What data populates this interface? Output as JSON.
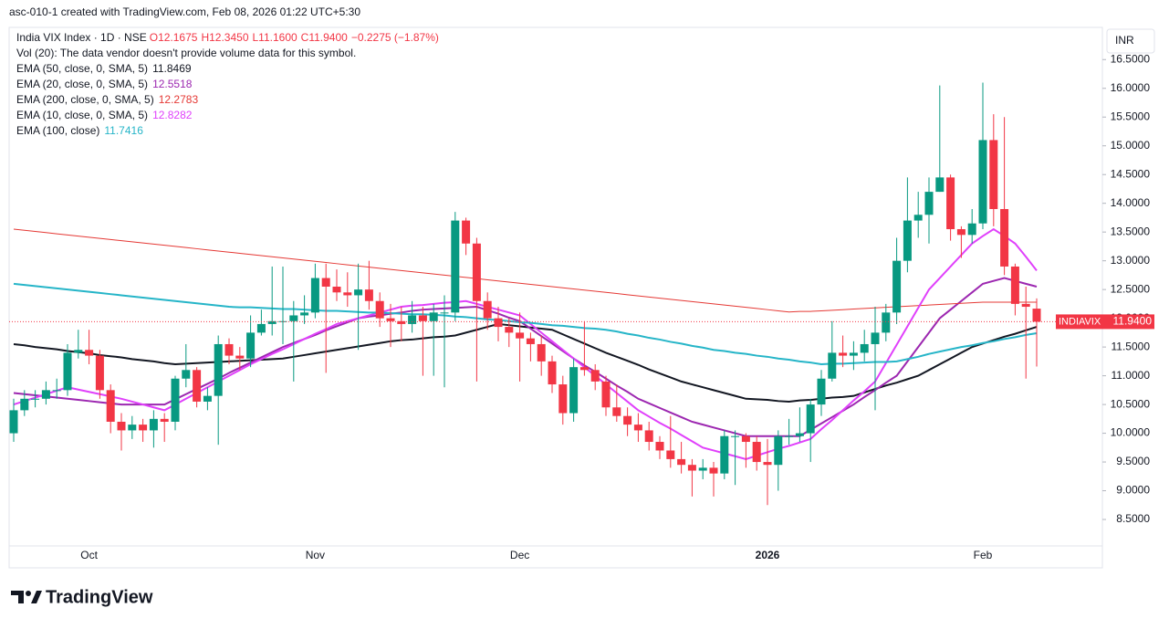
{
  "header": "asc-010-1 created with TradingView.com, Feb 08, 2026 01:22 UTC+5:30",
  "currency": "INR",
  "brand": "TradingView",
  "chart_data": {
    "type": "candlestick",
    "symbol": "India VIX Index · 1D · NSE",
    "ohlc_labels": [
      "O12.1675",
      "H12.3450",
      "L11.1600",
      "C11.9400"
    ],
    "change_label": "−0.2275 (−1.87%)",
    "volume_note": "Vol (20): The data vendor doesn't provide volume data for this symbol.",
    "price_tag": {
      "name": "INDIAVIX",
      "label": "11.9400"
    },
    "up_color": "#089981",
    "down_color": "#f23645",
    "categories": [
      null,
      null,
      null,
      null,
      null,
      null,
      null,
      "Oct",
      null,
      null,
      null,
      null,
      null,
      null,
      null,
      null,
      null,
      null,
      null,
      null,
      null,
      null,
      null,
      null,
      null,
      null,
      null,
      null,
      "Nov",
      null,
      null,
      null,
      null,
      null,
      null,
      null,
      null,
      null,
      null,
      null,
      null,
      null,
      null,
      null,
      null,
      null,
      null,
      "Dec",
      null,
      null,
      null,
      null,
      null,
      null,
      null,
      null,
      null,
      null,
      null,
      null,
      null,
      null,
      null,
      null,
      null,
      null,
      null,
      null,
      null,
      null,
      "2026",
      null,
      null,
      null,
      null,
      null,
      null,
      null,
      null,
      null,
      null,
      null,
      null,
      null,
      null,
      null,
      null,
      null,
      null,
      null,
      "Feb",
      null,
      null,
      null,
      null,
      null
    ],
    "open": [
      10.0,
      10.4,
      10.6,
      10.6,
      10.75,
      10.75,
      11.4,
      11.45,
      11.35,
      10.75,
      10.2,
      10.05,
      10.15,
      10.05,
      10.25,
      10.2,
      10.95,
      11.1,
      10.55,
      10.65,
      11.55,
      11.35,
      11.3,
      11.75,
      11.9,
      11.95,
      11.95,
      12.05,
      12.1,
      12.7,
      12.55,
      12.45,
      12.4,
      12.5,
      12.3,
      12.0,
      11.95,
      11.9,
      12.05,
      11.95,
      12.1,
      12.1,
      13.7,
      13.3,
      12.3,
      12.0,
      11.85,
      11.75,
      11.65,
      11.55,
      11.25,
      10.85,
      10.35,
      11.15,
      11.1,
      10.9,
      10.45,
      10.3,
      10.15,
      10.05,
      9.85,
      9.7,
      9.55,
      9.45,
      9.35,
      9.4,
      9.3,
      9.95,
      9.95,
      9.85,
      9.5,
      9.45,
      9.95,
      9.95,
      10.0,
      10.5,
      10.95,
      11.4,
      11.35,
      11.4,
      11.55,
      11.75,
      12.1,
      13.0,
      13.7,
      13.8,
      14.2,
      14.45,
      13.55,
      13.45,
      13.65,
      15.1,
      13.9,
      12.9,
      12.25,
      12.1675
    ],
    "high": [
      10.6,
      10.75,
      10.75,
      10.9,
      10.95,
      11.55,
      11.8,
      11.8,
      11.45,
      10.85,
      10.35,
      10.3,
      10.25,
      10.4,
      10.35,
      11.0,
      11.55,
      11.15,
      10.8,
      11.7,
      11.65,
      11.5,
      12.05,
      12.15,
      12.9,
      12.9,
      12.3,
      12.4,
      12.95,
      12.95,
      12.85,
      12.8,
      12.95,
      13.0,
      12.45,
      12.25,
      12.2,
      12.3,
      12.2,
      12.25,
      12.4,
      13.85,
      13.75,
      13.4,
      12.45,
      12.2,
      12.0,
      12.1,
      11.75,
      11.7,
      11.35,
      11.0,
      11.3,
      11.95,
      11.2,
      11.0,
      10.85,
      10.45,
      10.35,
      10.2,
      9.95,
      10.3,
      9.85,
      9.55,
      9.55,
      9.5,
      10.05,
      10.05,
      10.0,
      9.95,
      9.9,
      10.05,
      10.25,
      10.45,
      10.6,
      11.1,
      11.95,
      11.7,
      11.6,
      11.8,
      12.2,
      12.25,
      13.4,
      14.45,
      14.2,
      14.45,
      16.05,
      14.5,
      13.6,
      13.9,
      16.1,
      15.55,
      15.5,
      12.95,
      12.55,
      12.345
    ],
    "low": [
      9.85,
      10.3,
      10.45,
      10.5,
      10.6,
      10.65,
      11.3,
      11.2,
      10.6,
      10.0,
      9.7,
      9.9,
      9.85,
      9.75,
      9.85,
      10.05,
      10.8,
      10.45,
      10.4,
      9.8,
      11.2,
      11.1,
      11.15,
      11.7,
      11.7,
      11.55,
      10.9,
      11.9,
      12.0,
      11.05,
      12.3,
      12.2,
      11.45,
      12.15,
      11.85,
      11.5,
      11.6,
      11.75,
      11.0,
      11.0,
      10.8,
      11.95,
      13.1,
      10.9,
      11.8,
      11.6,
      11.5,
      10.9,
      11.25,
      11.0,
      10.7,
      10.15,
      10.2,
      11.0,
      10.75,
      10.3,
      10.2,
      9.95,
      9.85,
      9.7,
      9.55,
      9.4,
      9.3,
      8.9,
      9.2,
      8.9,
      9.2,
      9.1,
      9.4,
      9.35,
      8.75,
      9.0,
      9.8,
      9.85,
      9.5,
      10.3,
      10.9,
      11.15,
      11.1,
      11.25,
      10.4,
      11.6,
      11.9,
      12.8,
      13.4,
      13.3,
      14.2,
      13.35,
      13.05,
      13.3,
      13.55,
      13.6,
      12.75,
      12.05,
      10.95,
      11.16
    ],
    "close": [
      10.4,
      10.6,
      10.6,
      10.75,
      10.75,
      11.4,
      11.45,
      11.35,
      10.75,
      10.2,
      10.05,
      10.15,
      10.05,
      10.25,
      10.2,
      10.95,
      11.1,
      10.55,
      10.65,
      11.55,
      11.35,
      11.3,
      11.75,
      11.9,
      11.95,
      11.95,
      12.05,
      12.1,
      12.7,
      12.55,
      12.45,
      12.4,
      12.5,
      12.3,
      12.0,
      11.95,
      11.9,
      12.05,
      11.95,
      12.1,
      12.1,
      13.7,
      13.3,
      12.3,
      12.0,
      11.85,
      11.75,
      11.65,
      11.55,
      11.25,
      10.85,
      10.35,
      11.15,
      11.1,
      10.9,
      10.45,
      10.3,
      10.15,
      10.05,
      9.85,
      9.7,
      9.55,
      9.45,
      9.35,
      9.4,
      9.3,
      9.95,
      9.95,
      9.85,
      9.5,
      9.45,
      9.95,
      9.95,
      10.0,
      10.5,
      10.95,
      11.4,
      11.35,
      11.4,
      11.55,
      11.75,
      12.1,
      13.0,
      13.7,
      13.8,
      14.2,
      14.45,
      13.55,
      13.45,
      13.65,
      15.1,
      13.9,
      12.9,
      12.25,
      12.2,
      11.94
    ],
    "series": [
      {
        "name": "EMA (50, close, 0, SMA, 5)",
        "legend_value": "11.8469",
        "color": "#131722",
        "width": 2,
        "values": [
          11.55,
          11.53,
          11.5,
          11.48,
          11.46,
          11.43,
          11.41,
          11.39,
          11.36,
          11.34,
          11.32,
          11.29,
          11.27,
          11.25,
          11.22,
          11.2,
          11.21,
          11.22,
          11.23,
          11.24,
          11.25,
          11.26,
          11.27,
          11.28,
          11.29,
          11.3,
          11.33,
          11.36,
          11.39,
          11.42,
          11.45,
          11.48,
          11.51,
          11.54,
          11.57,
          11.6,
          11.62,
          11.63,
          11.65,
          11.67,
          11.68,
          11.7,
          11.75,
          11.8,
          11.85,
          11.9,
          11.88,
          11.86,
          11.84,
          11.82,
          11.8,
          11.72,
          11.64,
          11.56,
          11.48,
          11.4,
          11.33,
          11.26,
          11.19,
          11.11,
          11.04,
          10.97,
          10.9,
          10.85,
          10.8,
          10.75,
          10.7,
          10.65,
          10.6,
          10.59,
          10.58,
          10.56,
          10.55,
          10.57,
          10.58,
          10.6,
          10.62,
          10.63,
          10.65,
          10.71,
          10.77,
          10.83,
          10.88,
          10.94,
          11.0,
          11.1,
          11.2,
          11.3,
          11.4,
          11.5,
          11.56,
          11.62,
          11.68,
          11.73,
          11.79,
          11.85
        ]
      },
      {
        "name": "EMA (20, close, 0, SMA, 5)",
        "legend_value": "12.5518",
        "color": "#9c27b0",
        "width": 2,
        "values": [
          10.7,
          10.68,
          10.66,
          10.64,
          10.62,
          10.6,
          10.58,
          10.56,
          10.54,
          10.52,
          10.5,
          10.5,
          10.5,
          10.5,
          10.5,
          10.59,
          10.68,
          10.77,
          10.86,
          10.95,
          11.05,
          11.14,
          11.23,
          11.32,
          11.41,
          11.5,
          11.57,
          11.64,
          11.71,
          11.79,
          11.86,
          11.93,
          12.0,
          12.03,
          12.05,
          12.08,
          12.1,
          12.13,
          12.15,
          12.16,
          12.17,
          12.18,
          12.19,
          12.2,
          12.14,
          12.08,
          12.01,
          11.95,
          11.82,
          11.69,
          11.56,
          11.43,
          11.3,
          11.18,
          11.07,
          10.95,
          10.83,
          10.72,
          10.6,
          10.52,
          10.44,
          10.36,
          10.28,
          10.2,
          10.15,
          10.1,
          10.05,
          10.0,
          9.95,
          9.95,
          9.95,
          9.95,
          9.95,
          9.95,
          10.06,
          10.17,
          10.28,
          10.39,
          10.5,
          10.63,
          10.75,
          10.88,
          11.0,
          11.25,
          11.5,
          11.75,
          12.0,
          12.15,
          12.3,
          12.45,
          12.6,
          12.65,
          12.7,
          12.65,
          12.6,
          12.55
        ]
      },
      {
        "name": "EMA (200, close, 0, SMA, 5)",
        "legend_value": "12.2783",
        "color": "#e53935",
        "width": 1,
        "values": [
          13.55,
          13.53,
          13.51,
          13.49,
          13.47,
          13.45,
          13.43,
          13.41,
          13.39,
          13.37,
          13.35,
          13.33,
          13.31,
          13.29,
          13.27,
          13.25,
          13.23,
          13.21,
          13.19,
          13.17,
          13.15,
          13.13,
          13.11,
          13.09,
          13.07,
          13.05,
          13.03,
          13.01,
          12.99,
          12.97,
          12.95,
          12.93,
          12.91,
          12.89,
          12.87,
          12.85,
          12.83,
          12.81,
          12.79,
          12.77,
          12.75,
          12.73,
          12.71,
          12.69,
          12.67,
          12.65,
          12.63,
          12.61,
          12.59,
          12.57,
          12.55,
          12.53,
          12.51,
          12.49,
          12.47,
          12.45,
          12.43,
          12.41,
          12.39,
          12.37,
          12.35,
          12.33,
          12.31,
          12.29,
          12.27,
          12.25,
          12.23,
          12.21,
          12.19,
          12.17,
          12.15,
          12.13,
          12.11,
          12.12,
          12.12,
          12.13,
          12.14,
          12.15,
          12.16,
          12.17,
          12.18,
          12.19,
          12.2,
          12.21,
          12.22,
          12.23,
          12.24,
          12.25,
          12.26,
          12.27,
          12.28,
          12.28,
          12.28,
          12.28,
          12.28,
          12.28
        ]
      },
      {
        "name": "EMA (10, close, 0, SMA, 5)",
        "legend_value": "12.8282",
        "color": "#e040fb",
        "width": 2,
        "values": [
          10.5,
          10.56,
          10.62,
          10.68,
          10.74,
          10.8,
          10.76,
          10.72,
          10.68,
          10.64,
          10.6,
          10.55,
          10.5,
          10.45,
          10.4,
          10.5,
          10.6,
          10.7,
          10.8,
          10.9,
          11.0,
          11.1,
          11.2,
          11.29,
          11.38,
          11.46,
          11.55,
          11.64,
          11.73,
          11.81,
          11.9,
          11.95,
          12.0,
          12.05,
          12.1,
          12.15,
          12.2,
          12.22,
          12.23,
          12.25,
          12.27,
          12.28,
          12.3,
          12.25,
          12.2,
          12.15,
          12.1,
          12.05,
          11.9,
          11.75,
          11.6,
          11.45,
          11.3,
          11.15,
          11.0,
          10.85,
          10.7,
          10.55,
          10.4,
          10.29,
          10.18,
          10.08,
          9.97,
          9.86,
          9.75,
          9.7,
          9.65,
          9.6,
          9.55,
          9.61,
          9.67,
          9.73,
          9.78,
          9.84,
          9.9,
          10.07,
          10.23,
          10.4,
          10.57,
          10.73,
          10.9,
          11.22,
          11.54,
          11.86,
          12.18,
          12.5,
          12.7,
          12.9,
          13.1,
          13.3,
          13.43,
          13.55,
          13.43,
          13.3,
          13.07,
          12.83
        ]
      },
      {
        "name": "EMA (100, close)",
        "legend_value": "11.7416",
        "color": "#26b5c8",
        "width": 2,
        "values": [
          12.6,
          12.58,
          12.56,
          12.54,
          12.52,
          12.5,
          12.48,
          12.46,
          12.44,
          12.42,
          12.4,
          12.38,
          12.36,
          12.34,
          12.32,
          12.3,
          12.28,
          12.26,
          12.24,
          12.22,
          12.2,
          12.19,
          12.19,
          12.18,
          12.17,
          12.16,
          12.16,
          12.15,
          12.14,
          12.13,
          12.13,
          12.12,
          12.11,
          12.1,
          12.1,
          12.09,
          12.08,
          12.07,
          12.07,
          12.06,
          12.05,
          12.03,
          12.02,
          12.0,
          11.98,
          11.97,
          11.95,
          11.93,
          11.92,
          11.9,
          11.88,
          11.87,
          11.85,
          11.83,
          11.82,
          11.8,
          11.77,
          11.73,
          11.7,
          11.66,
          11.63,
          11.59,
          11.56,
          11.52,
          11.49,
          11.45,
          11.43,
          11.4,
          11.38,
          11.35,
          11.33,
          11.3,
          11.28,
          11.25,
          11.23,
          11.2,
          11.21,
          11.21,
          11.22,
          11.23,
          11.24,
          11.24,
          11.25,
          11.29,
          11.33,
          11.38,
          11.42,
          11.46,
          11.5,
          11.53,
          11.57,
          11.6,
          11.64,
          11.67,
          11.71,
          11.74
        ]
      }
    ],
    "ylim": [
      8.04,
      17.06
    ],
    "yticks": [
      {
        "value": 8.5,
        "label": "8.5000"
      },
      {
        "value": 9,
        "label": "9.0000"
      },
      {
        "value": 9.5,
        "label": "9.5000"
      },
      {
        "value": 10,
        "label": "10.0000"
      },
      {
        "value": 10.5,
        "label": "10.5000"
      },
      {
        "value": 11,
        "label": "11.0000"
      },
      {
        "value": 11.5,
        "label": "11.5000"
      },
      {
        "value": 12,
        "label": "12.0000"
      },
      {
        "value": 12.5,
        "label": "12.5000"
      },
      {
        "value": 13,
        "label": "13.0000"
      },
      {
        "value": 13.5,
        "label": "13.5000"
      },
      {
        "value": 14,
        "label": "14.0000"
      },
      {
        "value": 14.5,
        "label": "14.5000"
      },
      {
        "value": 15,
        "label": "15.0000"
      },
      {
        "value": 15.5,
        "label": "15.5000"
      },
      {
        "value": 16,
        "label": "16.0000"
      },
      {
        "value": 16.5,
        "label": "16.5000"
      }
    ],
    "grid": false
  }
}
